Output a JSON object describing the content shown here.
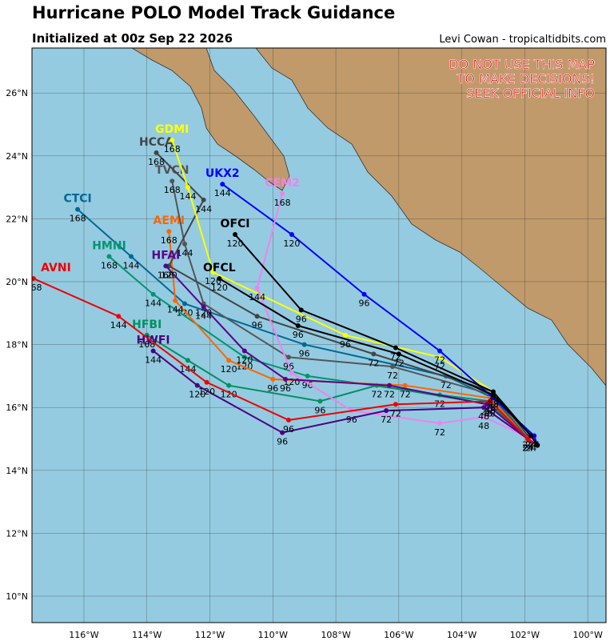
{
  "title": "Hurricane POLO Model Track Guidance",
  "subtitle": "Initialized at 00z Sep 22 2026",
  "credit": "Levi Cowan - tropicaltidbits.com",
  "warning": [
    "DO NOT USE THIS MAP",
    "TO MAKE DECISIONS!",
    "SEEK OFFICIAL INFO"
  ],
  "map": {
    "lonlim": [
      -117.65,
      -99.42
    ],
    "latlim": [
      9.16,
      27.43
    ],
    "lonticks": [
      {
        "value": -116,
        "label": "116°W"
      },
      {
        "value": -114,
        "label": "114°W"
      },
      {
        "value": -112,
        "label": "112°W"
      },
      {
        "value": -110,
        "label": "110°W"
      },
      {
        "value": -108,
        "label": "108°W"
      },
      {
        "value": -106,
        "label": "106°W"
      },
      {
        "value": -104,
        "label": "104°W"
      },
      {
        "value": -102,
        "label": "102°W"
      },
      {
        "value": -100,
        "label": "100°W"
      }
    ],
    "latticks": [
      {
        "value": 10,
        "label": "10°N"
      },
      {
        "value": 12,
        "label": "12°N"
      },
      {
        "value": 14,
        "label": "14°N"
      },
      {
        "value": 16,
        "label": "16°N"
      },
      {
        "value": 18,
        "label": "18°N"
      },
      {
        "value": 20,
        "label": "20°N"
      },
      {
        "value": 22,
        "label": "22°N"
      },
      {
        "value": 24,
        "label": "24°N"
      },
      {
        "value": 26,
        "label": "26°N"
      }
    ],
    "tracks": [
      {
        "name": "CTCI",
        "color": "#006994",
        "hours": [
          0,
          24,
          48,
          72,
          96,
          120,
          144,
          168
        ],
        "lon": [
          -101.6,
          -101.9,
          -103.0,
          -104.5,
          -109.0,
          -112.8,
          -114.5,
          -116.2
        ],
        "lat": [
          14.8,
          15.0,
          16.3,
          17.0,
          18.0,
          19.3,
          20.8,
          22.3
        ]
      },
      {
        "name": "HMNI",
        "color": "#00966e",
        "hours": [
          0,
          24,
          48,
          72,
          96,
          120,
          144,
          168
        ],
        "lon": [
          -101.6,
          -101.9,
          -103.1,
          -104.7,
          -108.9,
          -110.9,
          -113.8,
          -115.2
        ],
        "lat": [
          14.8,
          15.0,
          16.2,
          16.4,
          17.0,
          17.6,
          19.6,
          20.8
        ]
      },
      {
        "name": "HFBI",
        "color": "#009060",
        "hours": [
          0,
          24,
          48,
          72,
          96,
          120,
          144,
          168
        ],
        "lon": [
          -101.6,
          -101.9,
          -103.1,
          -106.7,
          -108.5,
          -111.4,
          -112.7,
          -114.0
        ],
        "lat": [
          14.8,
          15.0,
          16.1,
          16.7,
          16.2,
          16.7,
          17.5,
          18.3
        ]
      },
      {
        "name": "AEMI",
        "color": "#ff6600",
        "hours": [
          0,
          24,
          48,
          72,
          96,
          120,
          144,
          168
        ],
        "lon": [
          -101.6,
          -101.9,
          -103.1,
          -105.8,
          -110.0,
          -111.4,
          -113.1,
          -113.3
        ],
        "lat": [
          14.8,
          15.0,
          16.3,
          16.7,
          16.9,
          17.5,
          19.4,
          21.6
        ]
      },
      {
        "name": "TVCN",
        "color": "#555555",
        "hours": [
          0,
          24,
          48,
          72,
          96,
          120,
          144,
          168
        ],
        "lon": [
          -101.6,
          -101.9,
          -103.0,
          -106.2,
          -109.5,
          -112.2,
          -112.8,
          -113.2
        ],
        "lat": [
          14.8,
          15.0,
          16.4,
          17.3,
          17.6,
          19.3,
          21.2,
          23.2
        ]
      },
      {
        "name": "HCCA",
        "color": "#444444",
        "hours": [
          0,
          24,
          48,
          72,
          96,
          120,
          144,
          168
        ],
        "lon": [
          -101.6,
          -101.9,
          -103.0,
          -106.8,
          -110.5,
          -113.3,
          -112.2,
          -113.7
        ],
        "lat": [
          14.8,
          15.1,
          16.5,
          17.7,
          18.9,
          20.5,
          22.6,
          24.1
        ]
      },
      {
        "name": "GDMI",
        "color": "#ffff00",
        "hours": [
          0,
          24,
          48,
          72,
          96,
          120,
          144,
          168
        ],
        "lon": [
          -101.6,
          -101.8,
          -103.0,
          -104.7,
          -107.7,
          -111.9,
          -112.7,
          -113.2
        ],
        "lat": [
          14.8,
          15.1,
          16.5,
          17.6,
          18.3,
          20.3,
          23.0,
          24.5
        ]
      },
      {
        "name": "UKX2",
        "color": "#0000ff",
        "hours": [
          0,
          24,
          48,
          72,
          96,
          120,
          144
        ],
        "lon": [
          -101.6,
          -101.7,
          -103.0,
          -104.7,
          -107.1,
          -109.4,
          -111.6
        ],
        "lat": [
          14.8,
          15.1,
          16.3,
          17.8,
          19.6,
          21.5,
          23.1
        ]
      },
      {
        "name": "CEM2",
        "color": "#ee82ee",
        "hours": [
          0,
          24,
          48,
          72,
          96,
          120,
          144,
          168
        ],
        "lon": [
          -101.6,
          -101.8,
          -103.3,
          -104.7,
          -107.5,
          -109.4,
          -110.5,
          -109.7
        ],
        "lat": [
          14.8,
          15.0,
          15.7,
          15.5,
          15.9,
          17.1,
          19.8,
          22.8
        ]
      },
      {
        "name": "HWFI",
        "color": "#4b0082",
        "hours": [
          0,
          24,
          48,
          72,
          96,
          120,
          144
        ],
        "lon": [
          -101.6,
          -101.9,
          -103.3,
          -106.4,
          -109.7,
          -112.4,
          -113.8
        ],
        "lat": [
          14.8,
          15.0,
          16.0,
          15.9,
          15.2,
          16.7,
          17.8
        ]
      },
      {
        "name": "HFAI",
        "color": "#5a008a",
        "hours": [
          0,
          24,
          48,
          72,
          96,
          120,
          144,
          168
        ],
        "lon": [
          -101.6,
          -101.9,
          -103.2,
          -106.3,
          -109.6,
          -110.9,
          -112.2,
          -113.4
        ],
        "lat": [
          14.8,
          15.0,
          16.1,
          16.7,
          16.9,
          17.8,
          19.2,
          20.5
        ]
      },
      {
        "name": "AVNI",
        "color": "#ee0000",
        "hours": [
          0,
          24,
          48,
          72,
          96,
          120,
          144,
          168
        ],
        "lon": [
          -101.6,
          -101.9,
          -103.1,
          -106.1,
          -109.5,
          -112.1,
          -114.9,
          -117.6
        ],
        "lat": [
          14.8,
          15.0,
          16.2,
          16.1,
          15.6,
          16.8,
          18.9,
          20.1
        ]
      },
      {
        "name": "OFCL",
        "color": "#000000",
        "hours": [
          0,
          24,
          48,
          72,
          96,
          120
        ],
        "lon": [
          -101.6,
          -101.8,
          -103.0,
          -106.0,
          -109.2,
          -111.7
        ],
        "lat": [
          14.8,
          15.1,
          16.4,
          17.7,
          18.6,
          20.1
        ]
      },
      {
        "name": "OFCI",
        "color": "#000000",
        "hours": [
          0,
          24,
          48,
          72,
          96,
          120
        ],
        "lon": [
          -101.6,
          -101.8,
          -103.0,
          -106.1,
          -109.1,
          -111.2
        ],
        "lat": [
          14.8,
          15.1,
          16.5,
          17.9,
          19.1,
          21.5
        ]
      }
    ]
  }
}
